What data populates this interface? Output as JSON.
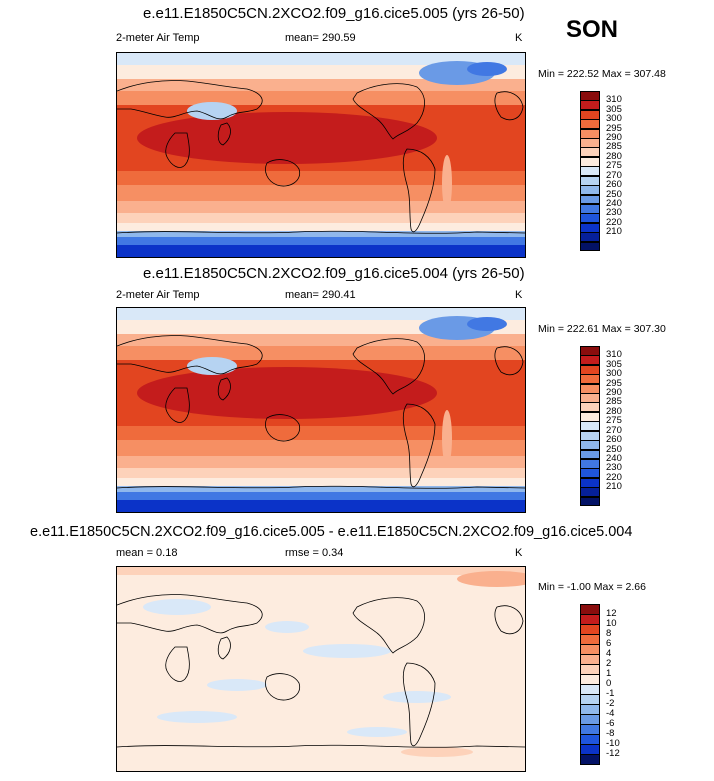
{
  "season": "SON",
  "panels": [
    {
      "id": "p1",
      "title": "e.e11.E1850C5CN.2XCO2.f09_g16.cice5.005 (yrs 26-50)",
      "left_label": "2-meter Air Temp",
      "center_label": "mean= 290.59",
      "right_label": "K",
      "minmax": "Min = 222.52 Max = 307.48",
      "colorbar": {
        "colors": [
          "#8a0d0d",
          "#c41c1c",
          "#e24520",
          "#ef6b3c",
          "#f68f63",
          "#fab08e",
          "#fdd2ba",
          "#fdecdf",
          "#d9e8f8",
          "#b6d3f2",
          "#90b8ec",
          "#6a9ae6",
          "#4178e3",
          "#1f55dd",
          "#0b33c8",
          "#06209a",
          "#031266"
        ],
        "labels": [
          "310",
          "305",
          "300",
          "295",
          "290",
          "285",
          "280",
          "275",
          "270",
          "260",
          "250",
          "240",
          "230",
          "220",
          "210"
        ]
      }
    },
    {
      "id": "p2",
      "title": "e.e11.E1850C5CN.2XCO2.f09_g16.cice5.004 (yrs 26-50)",
      "left_label": "2-meter Air Temp",
      "center_label": "mean= 290.41",
      "right_label": "K",
      "minmax": "Min = 222.61 Max = 307.30",
      "colorbar": {
        "colors": [
          "#8a0d0d",
          "#c41c1c",
          "#e24520",
          "#ef6b3c",
          "#f68f63",
          "#fab08e",
          "#fdd2ba",
          "#fdecdf",
          "#d9e8f8",
          "#b6d3f2",
          "#90b8ec",
          "#6a9ae6",
          "#4178e3",
          "#1f55dd",
          "#0b33c8",
          "#06209a",
          "#031266"
        ],
        "labels": [
          "310",
          "305",
          "300",
          "295",
          "290",
          "285",
          "280",
          "275",
          "270",
          "260",
          "250",
          "240",
          "230",
          "220",
          "210"
        ]
      }
    },
    {
      "id": "p3",
      "title": "e.e11.E1850C5CN.2XCO2.f09_g16.cice5.005 - e.e11.E1850C5CN.2XCO2.f09_g16.cice5.004",
      "left_label": "mean =   0.18",
      "center_label": "rmse =   0.34",
      "right_label": "K",
      "minmax": "Min =  -1.00 Max =   2.66",
      "colorbar": {
        "colors": [
          "#8a0d0d",
          "#c41c1c",
          "#e24520",
          "#ef6b3c",
          "#f68f63",
          "#fab08e",
          "#fdd2ba",
          "#fdecdf",
          "#d9e8f8",
          "#b6d3f2",
          "#90b8ec",
          "#6a9ae6",
          "#4178e3",
          "#1f55dd",
          "#0b33c8",
          "#031266"
        ],
        "labels": [
          "12",
          "10",
          "8",
          "6",
          "4",
          "2",
          "1",
          "0",
          "-1",
          "-2",
          "-4",
          "-6",
          "-8",
          "-10",
          "-12"
        ]
      }
    }
  ]
}
